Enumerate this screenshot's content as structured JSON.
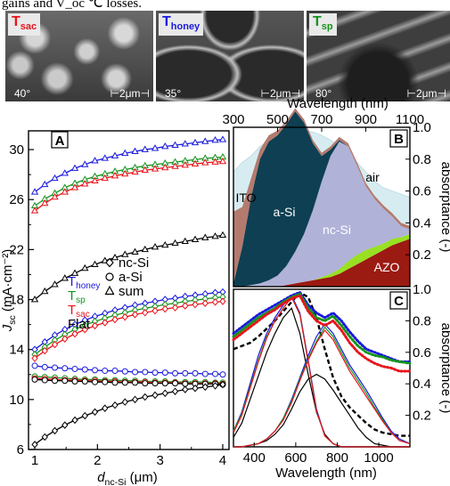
{
  "caption_fragment": "gains and V_oc ℃ losses.",
  "sem_panels": [
    {
      "id": "sac",
      "label_main": "T",
      "label_sub": "sac",
      "label_color": "#e8141c",
      "angle": "40°",
      "scale": "2μm"
    },
    {
      "id": "honey",
      "label_main": "T",
      "label_sub": "honey",
      "label_color": "#1a1adc",
      "angle": "35°",
      "scale": "2μm"
    },
    {
      "id": "sp",
      "label_main": "T",
      "label_sub": "sp",
      "label_color": "#15941d",
      "angle": "80°",
      "scale": "2μm"
    }
  ],
  "chart_data": [
    {
      "panel": "A",
      "type": "line",
      "xlabel": "d_nc-Si (μm)",
      "ylabel": "J_sc (mA·cm^-2)",
      "xlim": [
        0.9,
        4.1
      ],
      "ylim": [
        6,
        31.5
      ],
      "xticks": [
        1,
        2,
        3,
        4
      ],
      "yticks": [
        6,
        10,
        14,
        18,
        22,
        26,
        30
      ],
      "x": [
        1.0,
        1.16,
        1.32,
        1.48,
        1.64,
        1.8,
        1.96,
        2.12,
        2.28,
        2.44,
        2.6,
        2.76,
        2.92,
        3.08,
        3.24,
        3.4,
        3.56,
        3.72,
        3.88,
        4.0
      ],
      "legend_structures": [
        "T_honey",
        "T_sp",
        "T_sac",
        "Flat"
      ],
      "legend_markers": [
        {
          "marker": "diamond",
          "label": "nc-Si"
        },
        {
          "marker": "circle",
          "label": "a-Si"
        },
        {
          "marker": "triangle",
          "label": "sum"
        }
      ],
      "series": [
        {
          "name": "T_honey sum",
          "color": "#1a1adc",
          "marker": "triangle",
          "values": [
            26.6,
            27.2,
            27.7,
            28.1,
            28.5,
            28.8,
            29.1,
            29.3,
            29.5,
            29.7,
            29.85,
            30.0,
            30.1,
            30.25,
            30.35,
            30.45,
            30.55,
            30.65,
            30.75,
            30.8
          ]
        },
        {
          "name": "T_sp sum",
          "color": "#15941d",
          "marker": "triangle",
          "values": [
            25.5,
            26.05,
            26.5,
            26.95,
            27.3,
            27.6,
            27.85,
            28.05,
            28.25,
            28.4,
            28.55,
            28.7,
            28.8,
            28.9,
            29.0,
            29.1,
            29.2,
            29.3,
            29.35,
            29.4
          ]
        },
        {
          "name": "T_sac sum",
          "color": "#e8141c",
          "marker": "triangle",
          "values": [
            25.1,
            25.7,
            26.2,
            26.6,
            26.95,
            27.25,
            27.5,
            27.7,
            27.9,
            28.05,
            28.2,
            28.35,
            28.45,
            28.55,
            28.65,
            28.75,
            28.85,
            28.95,
            29.0,
            29.05
          ]
        },
        {
          "name": "Flat sum",
          "color": "#000000",
          "marker": "triangle",
          "values": [
            18.0,
            18.65,
            19.2,
            19.7,
            20.1,
            20.5,
            20.8,
            21.1,
            21.35,
            21.6,
            21.8,
            22.0,
            22.2,
            22.35,
            22.5,
            22.65,
            22.8,
            22.95,
            23.05,
            23.15
          ]
        },
        {
          "name": "T_honey nc-Si",
          "color": "#1a1adc",
          "marker": "diamond",
          "values": [
            14.0,
            14.6,
            15.15,
            15.6,
            16.0,
            16.35,
            16.65,
            16.9,
            17.15,
            17.35,
            17.55,
            17.7,
            17.85,
            18.0,
            18.1,
            18.25,
            18.35,
            18.45,
            18.55,
            18.6
          ]
        },
        {
          "name": "T_sp nc-Si",
          "color": "#15941d",
          "marker": "diamond",
          "values": [
            13.6,
            14.2,
            14.75,
            15.2,
            15.6,
            15.95,
            16.25,
            16.5,
            16.75,
            16.95,
            17.15,
            17.3,
            17.45,
            17.6,
            17.7,
            17.85,
            17.95,
            18.05,
            18.15,
            18.2
          ]
        },
        {
          "name": "T_sac nc-Si",
          "color": "#e8141c",
          "marker": "diamond",
          "values": [
            13.3,
            13.9,
            14.4,
            14.85,
            15.25,
            15.6,
            15.9,
            16.15,
            16.4,
            16.6,
            16.8,
            16.95,
            17.1,
            17.25,
            17.35,
            17.5,
            17.6,
            17.7,
            17.8,
            17.85
          ]
        },
        {
          "name": "T_honey a-Si",
          "color": "#1a1adc",
          "marker": "circle",
          "values": [
            12.7,
            12.6,
            12.55,
            12.5,
            12.45,
            12.4,
            12.35,
            12.3,
            12.3,
            12.25,
            12.2,
            12.2,
            12.15,
            12.15,
            12.1,
            12.1,
            12.1,
            12.05,
            12.05,
            12.0
          ]
        },
        {
          "name": "T_sp a-Si",
          "color": "#15941d",
          "marker": "circle",
          "values": [
            11.85,
            11.8,
            11.75,
            11.7,
            11.65,
            11.6,
            11.6,
            11.55,
            11.55,
            11.5,
            11.5,
            11.45,
            11.45,
            11.45,
            11.4,
            11.4,
            11.4,
            11.4,
            11.35,
            11.35
          ]
        },
        {
          "name": "T_sac a-Si",
          "color": "#e8141c",
          "marker": "circle",
          "values": [
            11.7,
            11.65,
            11.6,
            11.55,
            11.55,
            11.5,
            11.5,
            11.45,
            11.45,
            11.4,
            11.4,
            11.4,
            11.35,
            11.35,
            11.35,
            11.3,
            11.3,
            11.3,
            11.3,
            11.25
          ]
        },
        {
          "name": "Flat a-Si",
          "color": "#000000",
          "marker": "circle",
          "values": [
            11.6,
            11.55,
            11.5,
            11.5,
            11.45,
            11.45,
            11.4,
            11.4,
            11.35,
            11.35,
            11.35,
            11.3,
            11.3,
            11.3,
            11.3,
            11.25,
            11.25,
            11.25,
            11.25,
            11.2
          ]
        },
        {
          "name": "Flat nc-Si",
          "color": "#000000",
          "marker": "diamond",
          "values": [
            6.4,
            7.0,
            7.5,
            7.95,
            8.35,
            8.7,
            9.0,
            9.3,
            9.55,
            9.8,
            10.0,
            10.2,
            10.35,
            10.5,
            10.65,
            10.8,
            10.9,
            11.0,
            11.1,
            11.2
          ]
        }
      ]
    },
    {
      "panel": "B",
      "type": "area",
      "xlabel": "Wavelength (nm)",
      "ylabel": "absorptance (-)",
      "xlim": [
        300,
        1100
      ],
      "ylim": [
        0,
        1.0
      ],
      "xticks": [
        300,
        500,
        700,
        900,
        1100
      ],
      "yticks": [
        0.2,
        0.4,
        0.6,
        0.8,
        1.0
      ],
      "x": [
        300,
        340,
        380,
        420,
        460,
        500,
        540,
        580,
        620,
        660,
        700,
        740,
        780,
        820,
        860,
        900,
        940,
        980,
        1020,
        1060,
        1100
      ],
      "series": [
        {
          "name": "AZO",
          "color": "#9b1a12",
          "values": [
            0.0,
            0.0,
            0.0,
            0.0,
            0.0,
            0.0,
            0.01,
            0.02,
            0.03,
            0.04,
            0.05,
            0.06,
            0.08,
            0.11,
            0.14,
            0.17,
            0.2,
            0.23,
            0.26,
            0.28,
            0.3
          ]
        },
        {
          "name": "nc-Si",
          "color": "#b0b2d8",
          "values": [
            0.0,
            0.0,
            0.01,
            0.02,
            0.04,
            0.07,
            0.12,
            0.2,
            0.3,
            0.44,
            0.6,
            0.74,
            0.8,
            0.72,
            0.56,
            0.4,
            0.3,
            0.22,
            0.14,
            0.07,
            0.03
          ]
        },
        {
          "name": "a-Si",
          "color": "#0e3f52",
          "values": [
            0.02,
            0.25,
            0.55,
            0.78,
            0.87,
            0.88,
            0.89,
            0.88,
            0.7,
            0.42,
            0.16,
            0.04,
            0.01,
            0.0,
            0.0,
            0.0,
            0.0,
            0.0,
            0.0,
            0.0,
            0.0
          ]
        },
        {
          "name": "ITO",
          "color": "#b47a6e",
          "values": [
            0.45,
            0.25,
            0.12,
            0.06,
            0.04,
            0.03,
            0.02,
            0.02,
            0.02,
            0.02,
            0.02,
            0.02,
            0.02,
            0.02,
            0.02,
            0.02,
            0.02,
            0.02,
            0.02,
            0.02,
            0.02
          ]
        },
        {
          "name": "parasitic",
          "color": "#99e023",
          "values": [
            0.0,
            0.0,
            0.0,
            0.0,
            0.0,
            0.0,
            0.0,
            0.0,
            0.0,
            0.0,
            0.01,
            0.02,
            0.03,
            0.05,
            0.06,
            0.06,
            0.05,
            0.04,
            0.04,
            0.03,
            0.03
          ]
        }
      ],
      "air_top": [
        0.72,
        0.78,
        0.82,
        0.88,
        0.92,
        0.93,
        0.96,
        0.97,
        0.98,
        0.97,
        0.95,
        0.92,
        0.88,
        0.84,
        0.78,
        0.72,
        0.66,
        0.62,
        0.6,
        0.58,
        0.56
      ],
      "labels": [
        "air",
        "ITO",
        "a-Si",
        "nc-Si",
        "AZO"
      ]
    },
    {
      "panel": "C",
      "type": "line",
      "xlabel": "Wavelength (nm)",
      "ylabel": "absorptance (-)",
      "xlim": [
        300,
        1150
      ],
      "ylim": [
        0,
        1.0
      ],
      "xticks": [
        400,
        600,
        800,
        1000
      ],
      "yticks": [
        0.2,
        0.4,
        0.6,
        0.8,
        1.0
      ],
      "x": [
        300,
        340,
        380,
        420,
        460,
        500,
        540,
        580,
        620,
        660,
        700,
        740,
        780,
        820,
        860,
        900,
        940,
        980,
        1020,
        1060,
        1100,
        1150
      ],
      "series": [
        {
          "name": "Flat a-Si",
          "color": "#000000",
          "style": "solid",
          "values": [
            0.06,
            0.15,
            0.3,
            0.45,
            0.6,
            0.72,
            0.82,
            0.88,
            0.72,
            0.46,
            0.22,
            0.08,
            0.02,
            0.0,
            0.0,
            0.0,
            0.0,
            0.0,
            0.0,
            0.0,
            0.0,
            0.0
          ]
        },
        {
          "name": "Flat nc-Si",
          "color": "#000000",
          "style": "solid",
          "values": [
            0.0,
            0.0,
            0.01,
            0.02,
            0.04,
            0.08,
            0.14,
            0.24,
            0.35,
            0.43,
            0.46,
            0.43,
            0.36,
            0.28,
            0.2,
            0.12,
            0.06,
            0.02,
            0.01,
            0.0,
            0.0,
            0.0
          ]
        },
        {
          "name": "Flat sum",
          "color": "#000000",
          "style": "dashed",
          "values": [
            0.62,
            0.64,
            0.66,
            0.7,
            0.75,
            0.8,
            0.86,
            0.92,
            0.98,
            0.95,
            0.82,
            0.62,
            0.44,
            0.32,
            0.25,
            0.2,
            0.15,
            0.11,
            0.09,
            0.08,
            0.07,
            0.07
          ]
        },
        {
          "name": "T_honey a-Si",
          "color": "#1a1adc",
          "style": "solid",
          "values": [
            0.1,
            0.22,
            0.4,
            0.58,
            0.72,
            0.82,
            0.9,
            0.96,
            0.85,
            0.55,
            0.24,
            0.07,
            0.02,
            0.0,
            0.0,
            0.0,
            0.0,
            0.0,
            0.0,
            0.0,
            0.0,
            0.0
          ]
        },
        {
          "name": "T_honey nc-Si",
          "color": "#1a1adc",
          "style": "solid",
          "values": [
            0.0,
            0.0,
            0.01,
            0.02,
            0.05,
            0.1,
            0.18,
            0.3,
            0.44,
            0.58,
            0.7,
            0.78,
            0.72,
            0.62,
            0.52,
            0.44,
            0.36,
            0.27,
            0.18,
            0.1,
            0.05,
            0.02
          ]
        },
        {
          "name": "T_honey sum",
          "color": "#1a1adc",
          "style": "dotted",
          "values": [
            0.72,
            0.76,
            0.8,
            0.84,
            0.87,
            0.9,
            0.93,
            0.96,
            0.98,
            0.9,
            0.85,
            0.82,
            0.85,
            0.8,
            0.73,
            0.67,
            0.62,
            0.6,
            0.58,
            0.56,
            0.54,
            0.54
          ]
        },
        {
          "name": "T_sp a-Si",
          "color": "#15941d",
          "style": "solid",
          "values": [
            0.1,
            0.21,
            0.38,
            0.55,
            0.7,
            0.8,
            0.88,
            0.95,
            0.84,
            0.54,
            0.23,
            0.07,
            0.02,
            0.0,
            0.0,
            0.0,
            0.0,
            0.0,
            0.0,
            0.0,
            0.0,
            0.0
          ]
        },
        {
          "name": "T_sp nc-Si",
          "color": "#15941d",
          "style": "solid",
          "values": [
            0.0,
            0.0,
            0.01,
            0.02,
            0.05,
            0.1,
            0.18,
            0.29,
            0.43,
            0.56,
            0.67,
            0.76,
            0.7,
            0.6,
            0.5,
            0.42,
            0.34,
            0.25,
            0.17,
            0.09,
            0.04,
            0.02
          ]
        },
        {
          "name": "T_sp sum",
          "color": "#15941d",
          "style": "dotted",
          "values": [
            0.7,
            0.74,
            0.78,
            0.82,
            0.85,
            0.88,
            0.92,
            0.95,
            0.97,
            0.88,
            0.82,
            0.8,
            0.83,
            0.77,
            0.7,
            0.64,
            0.6,
            0.58,
            0.57,
            0.55,
            0.54,
            0.53
          ]
        },
        {
          "name": "T_sac a-Si",
          "color": "#e8141c",
          "style": "solid",
          "values": [
            0.09,
            0.2,
            0.37,
            0.54,
            0.69,
            0.8,
            0.88,
            0.95,
            0.84,
            0.54,
            0.23,
            0.07,
            0.02,
            0.0,
            0.0,
            0.0,
            0.0,
            0.0,
            0.0,
            0.0,
            0.0,
            0.0
          ]
        },
        {
          "name": "T_sac nc-Si",
          "color": "#e8141c",
          "style": "solid",
          "values": [
            0.0,
            0.0,
            0.01,
            0.02,
            0.05,
            0.1,
            0.17,
            0.28,
            0.42,
            0.55,
            0.66,
            0.74,
            0.68,
            0.58,
            0.48,
            0.4,
            0.32,
            0.24,
            0.16,
            0.09,
            0.04,
            0.02
          ]
        },
        {
          "name": "T_sac sum",
          "color": "#e8141c",
          "style": "dotted",
          "values": [
            0.68,
            0.72,
            0.76,
            0.8,
            0.84,
            0.87,
            0.91,
            0.94,
            0.96,
            0.86,
            0.8,
            0.77,
            0.8,
            0.74,
            0.66,
            0.6,
            0.56,
            0.53,
            0.51,
            0.5,
            0.48,
            0.48
          ]
        }
      ]
    }
  ]
}
